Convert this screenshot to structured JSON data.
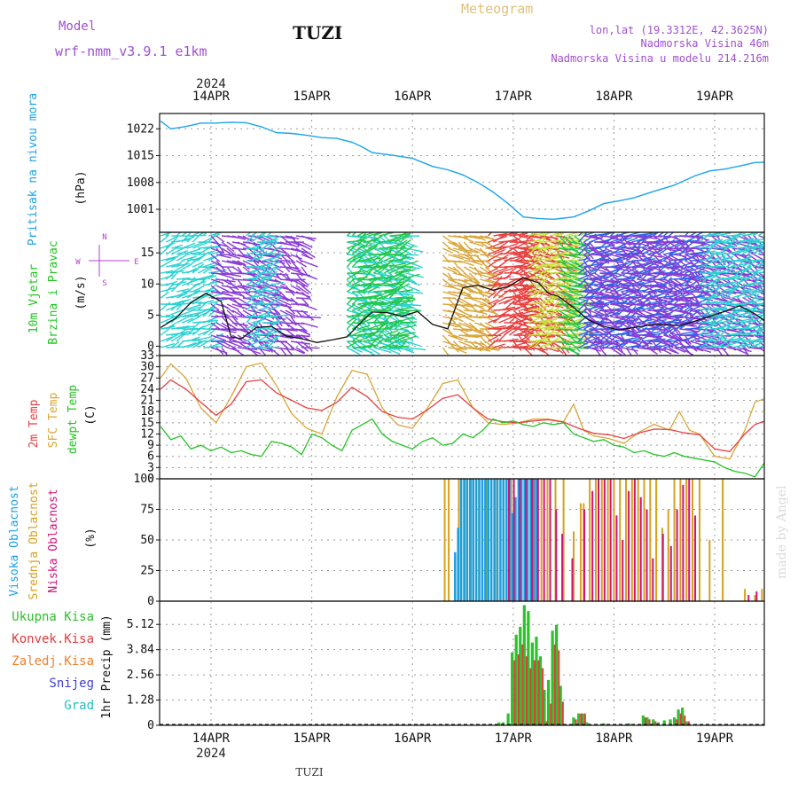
{
  "header": {
    "model_label": "Model",
    "model_name": "wrf-nmm_v3.9.1 e1km",
    "station": "TUZI",
    "meteogram_label": "Meteogram",
    "coords": "lon,lat (19.3312E, 42.3625N)",
    "elevation": "Nadmorska Visina 46m",
    "model_elevation": "Nadmorska Visina u modelu 214.216m",
    "year": "2024",
    "footer_station": "TUZI",
    "watermark": "made by Angel"
  },
  "colors": {
    "pressure": "#1ca3e8",
    "temp2m": "#e84040",
    "sfc_temp": "#d9a63a",
    "dewpt": "#22c322",
    "high_cloud": "#1a9fe0",
    "mid_cloud": "#d8a020",
    "low_cloud": "#d0127c",
    "total_precip": "#2fbf2f",
    "conv_precip": "#e33a3a",
    "frz_precip": "#f07f2a",
    "snow": "#4040e0",
    "hail": "#20c0c0",
    "wind_axis_label": "#b040d0"
  },
  "labels": {
    "pressure": [
      "Pritisak na nivou mora",
      "(hPa)"
    ],
    "wind": [
      "10m Vjetar",
      "Brzina i Pravac",
      "(m/s)"
    ],
    "compass": [
      "N",
      "W",
      "E",
      "S"
    ],
    "temp": [
      "2m Temp",
      "SFC Temp",
      "dewpt Temp",
      "(C)"
    ],
    "cloud": [
      "Visoka Oblacnost",
      "Srednja Oblacnost",
      "Niska Oblacnost",
      "(%)"
    ],
    "precip_unit": "1hr Precip (mm)",
    "precip_legend": [
      "Ukupna Kisa",
      "Konvek.Kisa",
      "Zaledj.Kisa",
      "Snijeg",
      "Grad"
    ]
  },
  "chart_data": [
    {
      "type": "line",
      "panel": "pressure",
      "x_day_ticks": [
        "14APR",
        "15APR",
        "16APR",
        "17APR",
        "18APR",
        "19APR"
      ],
      "ylabel": "(hPa)",
      "yticks": [
        1001,
        1008,
        1015,
        1022
      ],
      "ylim": [
        995,
        1026
      ],
      "series": [
        {
          "name": "Pritisak na nivou mora",
          "x": [
            13.5,
            13.6,
            13.75,
            13.9,
            14.05,
            14.2,
            14.35,
            14.5,
            14.65,
            14.8,
            14.95,
            15.1,
            15.25,
            15.4,
            15.5,
            15.6,
            15.8,
            16.0,
            16.2,
            16.35,
            16.5,
            16.65,
            16.8,
            16.95,
            17.1,
            17.25,
            17.4,
            17.5,
            17.6,
            17.75,
            17.9,
            18.05,
            18.2,
            18.4,
            18.6,
            18.8,
            18.95,
            19.1,
            19.25,
            19.4,
            19.5
          ],
          "values": [
            1024,
            1022,
            1022.6,
            1023.5,
            1023.5,
            1023.7,
            1023.6,
            1022.5,
            1021,
            1020.8,
            1020.3,
            1019.7,
            1019.5,
            1018.5,
            1017.3,
            1015.8,
            1015.1,
            1014.3,
            1012.2,
            1011.3,
            1010,
            1008,
            1005.5,
            1002.5,
            999,
            998.6,
            998.4,
            998.7,
            999,
            1000.6,
            1002.5,
            1003.2,
            1004,
            1005.7,
            1007.3,
            1009.7,
            1011,
            1011.5,
            1012.3,
            1013.2,
            1013.3
          ]
        }
      ]
    },
    {
      "type": "line",
      "panel": "wind",
      "x_day_ticks": [
        "14APR",
        "15APR",
        "16APR",
        "17APR",
        "18APR",
        "19APR"
      ],
      "ylabel": "(m/s)",
      "yticks": [
        0,
        5,
        10,
        15
      ],
      "ylim": [
        -1.5,
        18.3
      ],
      "series": [
        {
          "name": "10m Vjetar",
          "x": [
            13.5,
            13.65,
            13.8,
            13.95,
            14.1,
            14.2,
            14.3,
            14.45,
            14.6,
            14.75,
            14.9,
            15.05,
            15.2,
            15.35,
            15.5,
            15.6,
            15.75,
            15.9,
            16.05,
            16.2,
            16.35,
            16.5,
            16.65,
            16.8,
            16.95,
            17.1,
            17.25,
            17.35,
            17.45,
            17.6,
            17.75,
            17.9,
            18.05,
            18.2,
            18.35,
            18.5,
            18.65,
            18.8,
            18.95,
            19.1,
            19.25,
            19.4,
            19.5
          ],
          "values": [
            3,
            4.5,
            7,
            8.5,
            7.2,
            1.5,
            1.2,
            3,
            3.2,
            1.6,
            1.2,
            0.6,
            1,
            1.5,
            4,
            5.5,
            5.4,
            4.8,
            5.6,
            3.5,
            2.8,
            9.4,
            9.8,
            9,
            9.6,
            11,
            10.2,
            8.5,
            8,
            6.2,
            4.2,
            3.2,
            2.6,
            3,
            3.4,
            3.5,
            3.3,
            4,
            4.8,
            5.6,
            6.5,
            5.2,
            4
          ]
        }
      ],
      "arrow_bands": [
        {
          "color": "#2ad2d2",
          "from": 13.5,
          "to": 14.0
        },
        {
          "color": "#8a3ad6",
          "from": 14.0,
          "to": 14.9
        },
        {
          "color": "#2ad2d2",
          "from": 14.35,
          "to": 14.6
        },
        {
          "color": "#2ad2d2",
          "from": 15.35,
          "to": 15.95
        },
        {
          "color": "#22c84a",
          "from": 15.35,
          "to": 15.9
        },
        {
          "color": "#d9a63a",
          "from": 16.3,
          "to": 16.75
        },
        {
          "color": "#e84040",
          "from": 16.75,
          "to": 17.15
        },
        {
          "color": "#e84040",
          "from": 17.0,
          "to": 17.5
        },
        {
          "color": "#c8e03c",
          "from": 17.15,
          "to": 17.65
        },
        {
          "color": "#22c84a",
          "from": 17.45,
          "to": 17.65
        },
        {
          "color": "#2a66e8",
          "from": 17.65,
          "to": 18.85
        },
        {
          "color": "#8a3ad6",
          "from": 17.7,
          "to": 19.5
        },
        {
          "color": "#2ad2d2",
          "from": 18.85,
          "to": 19.5
        }
      ]
    },
    {
      "type": "line",
      "panel": "temperature",
      "x_day_ticks": [
        "14APR",
        "15APR",
        "16APR",
        "17APR",
        "18APR",
        "19APR"
      ],
      "ylabel": "(C)",
      "yticks": [
        0,
        3,
        6,
        9,
        12,
        15,
        18,
        21,
        24,
        27,
        30,
        33
      ],
      "ylim": [
        0,
        33
      ],
      "series": [
        {
          "name": "2m Temp",
          "x": [
            13.5,
            13.6,
            13.75,
            13.9,
            14.05,
            14.2,
            14.35,
            14.5,
            14.65,
            14.8,
            14.95,
            15.1,
            15.25,
            15.4,
            15.55,
            15.7,
            15.85,
            16.0,
            16.15,
            16.3,
            16.45,
            16.6,
            16.75,
            16.9,
            17.05,
            17.2,
            17.35,
            17.5,
            17.65,
            17.8,
            17.95,
            18.1,
            18.25,
            18.4,
            18.55,
            18.7,
            18.85,
            19.0,
            19.15,
            19.3,
            19.4,
            19.5
          ],
          "values": [
            24,
            26.5,
            24,
            20.5,
            17,
            20,
            26,
            26.5,
            23,
            21,
            19,
            18.3,
            20.5,
            24.5,
            22,
            18,
            16.5,
            16,
            18.5,
            21.5,
            22.5,
            19,
            16,
            15.3,
            15,
            15.5,
            15.8,
            15.2,
            13.5,
            12.2,
            11.8,
            10.8,
            12.3,
            13.3,
            13.2,
            12.3,
            11.8,
            8,
            7.3,
            12,
            14.5,
            15.5
          ]
        },
        {
          "name": "SFC Temp",
          "x": [
            13.5,
            13.6,
            13.75,
            13.9,
            14.05,
            14.2,
            14.35,
            14.5,
            14.65,
            14.8,
            14.95,
            15.1,
            15.25,
            15.4,
            15.55,
            15.7,
            15.85,
            16.0,
            16.15,
            16.3,
            16.45,
            16.6,
            16.75,
            16.9,
            17.05,
            17.2,
            17.35,
            17.5,
            17.6,
            17.7,
            17.8,
            17.95,
            18.1,
            18.25,
            18.4,
            18.55,
            18.65,
            18.75,
            18.85,
            19.0,
            19.15,
            19.3,
            19.4,
            19.5
          ],
          "values": [
            27,
            30.8,
            27,
            19,
            15,
            22,
            30,
            31,
            25,
            17.5,
            13.5,
            12,
            22,
            29,
            28,
            19,
            14.5,
            13.5,
            19,
            25.5,
            26.5,
            19,
            15,
            14.5,
            15,
            16,
            16,
            15.3,
            20,
            13,
            11.5,
            10.8,
            9.5,
            12.5,
            14.6,
            13,
            18,
            13,
            12,
            6,
            5.3,
            13,
            20.5,
            21.5
          ]
        },
        {
          "name": "dewpt Temp",
          "x": [
            13.5,
            13.6,
            13.7,
            13.8,
            13.9,
            14.0,
            14.1,
            14.2,
            14.3,
            14.4,
            14.5,
            14.6,
            14.7,
            14.8,
            14.9,
            15.0,
            15.1,
            15.2,
            15.3,
            15.4,
            15.5,
            15.6,
            15.7,
            15.8,
            15.9,
            16.0,
            16.1,
            16.2,
            16.3,
            16.4,
            16.5,
            16.6,
            16.7,
            16.8,
            16.9,
            17.0,
            17.1,
            17.2,
            17.3,
            17.4,
            17.5,
            17.6,
            17.7,
            17.8,
            17.9,
            18.0,
            18.1,
            18.2,
            18.3,
            18.4,
            18.5,
            18.6,
            18.7,
            18.8,
            18.9,
            19.0,
            19.1,
            19.2,
            19.3,
            19.4,
            19.5
          ],
          "values": [
            14,
            10.5,
            11.5,
            8,
            9,
            7.5,
            8.5,
            7,
            7.5,
            6.5,
            6,
            10,
            9.5,
            8.5,
            6.5,
            12,
            11,
            9,
            7.5,
            13,
            14.5,
            16,
            12,
            10,
            9,
            8,
            10,
            11,
            9,
            9.5,
            12,
            11,
            13,
            16,
            15,
            15.5,
            14.5,
            14,
            15,
            14.5,
            15,
            12,
            11,
            10,
            10.5,
            9,
            8.5,
            7,
            7.5,
            6.5,
            6,
            7,
            6,
            5.5,
            5,
            4.5,
            3,
            2,
            1.5,
            0.5,
            4.5
          ]
        }
      ]
    },
    {
      "type": "bar",
      "panel": "cloud",
      "x_day_ticks": [
        "14APR",
        "15APR",
        "16APR",
        "17APR",
        "18APR",
        "19APR"
      ],
      "ylabel": "(%)",
      "yticks": [
        0,
        25,
        50,
        75,
        100
      ],
      "ylim": [
        0,
        100
      ],
      "series": [
        {
          "name": "Visoka Oblacnost",
          "x": [
            16.41,
            16.44,
            16.47,
            16.5,
            16.53,
            16.56,
            16.59,
            16.62,
            16.65,
            16.68,
            16.71,
            16.74,
            16.77,
            16.8,
            16.83,
            16.86,
            16.89,
            16.92,
            16.95,
            16.98,
            17.01,
            17.04,
            17.07,
            17.1,
            17.13,
            17.16,
            17.19,
            17.22
          ],
          "values": [
            40,
            60,
            100,
            100,
            100,
            100,
            100,
            100,
            100,
            100,
            100,
            100,
            100,
            100,
            100,
            100,
            100,
            100,
            100,
            72,
            85,
            100,
            100,
            100,
            100,
            100,
            100,
            100
          ]
        },
        {
          "name": "Srednja Oblacnost",
          "x": [
            16.32,
            16.36,
            16.46,
            16.52,
            16.58,
            16.66,
            16.74,
            16.82,
            16.9,
            16.98,
            17.06,
            17.14,
            17.22,
            17.28,
            17.34,
            17.42,
            17.5,
            17.6,
            17.67,
            17.7,
            17.76,
            17.82,
            17.88,
            17.94,
            18.0,
            18.06,
            18.12,
            18.18,
            18.24,
            18.3,
            18.36,
            18.42,
            18.48,
            18.54,
            18.6,
            18.66,
            18.72,
            18.78,
            18.85,
            18.95,
            19.08,
            19.3,
            19.4,
            19.47
          ],
          "values": [
            100,
            100,
            100,
            100,
            100,
            100,
            100,
            100,
            100,
            100,
            100,
            100,
            100,
            100,
            100,
            100,
            100,
            57,
            80,
            80,
            100,
            100,
            100,
            100,
            100,
            100,
            100,
            100,
            100,
            100,
            100,
            100,
            60,
            75,
            100,
            100,
            100,
            100,
            100,
            50,
            100,
            10,
            5,
            10
          ]
        },
        {
          "name": "Niska Oblacnost",
          "x": [
            16.97,
            17.02,
            17.08,
            17.14,
            17.2,
            17.26,
            17.32,
            17.38,
            17.44,
            17.5,
            17.6,
            17.72,
            17.8,
            17.86,
            17.92,
            17.98,
            18.04,
            18.1,
            18.16,
            18.22,
            18.28,
            18.34,
            18.4,
            18.5,
            18.58,
            18.64,
            18.7,
            18.76,
            18.82,
            19.35,
            19.43
          ],
          "values": [
            100,
            100,
            100,
            100,
            100,
            100,
            100,
            100,
            75,
            55,
            35,
            75,
            90,
            100,
            100,
            100,
            70,
            50,
            90,
            100,
            85,
            75,
            35,
            55,
            45,
            75,
            95,
            100,
            70,
            5,
            8
          ]
        }
      ]
    },
    {
      "type": "bar",
      "panel": "precipitation",
      "x_day_ticks": [
        "14APR",
        "15APR",
        "16APR",
        "17APR",
        "18APR",
        "19APR"
      ],
      "ylabel": "1hr Precip (mm)",
      "yticks": [
        0,
        1.28,
        2.56,
        3.84,
        5.12
      ],
      "ylim": [
        0,
        6.3
      ],
      "series": [
        {
          "name": "Ukupna Kisa",
          "x": [
            16.86,
            16.9,
            16.95,
            16.99,
            17.03,
            17.07,
            17.11,
            17.15,
            17.19,
            17.23,
            17.27,
            17.31,
            17.35,
            17.39,
            17.43,
            17.47,
            17.6,
            17.65,
            17.69,
            17.73,
            17.9,
            18.15,
            18.29,
            18.33,
            18.39,
            18.44,
            18.5,
            18.56,
            18.6,
            18.64,
            18.68,
            18.72
          ],
          "values": [
            0.15,
            0.15,
            0.6,
            3.7,
            4.6,
            5.0,
            6.1,
            5.8,
            4.2,
            4.5,
            3.5,
            1.8,
            2.3,
            4.8,
            5.1,
            2.0,
            0.4,
            0.6,
            0.6,
            0.15,
            0.1,
            0.1,
            0.5,
            0.4,
            0.3,
            0.15,
            0.25,
            0.3,
            0.4,
            0.8,
            0.9,
            0.2
          ]
        },
        {
          "name": "Konvek.Kisa",
          "x": [
            17.0,
            17.04,
            17.08,
            17.12,
            17.16,
            17.2,
            17.24,
            17.28,
            17.32,
            17.36,
            17.4,
            17.44,
            17.48,
            17.61,
            17.66,
            17.7,
            18.3,
            18.34,
            18.4,
            18.61,
            18.65,
            18.69,
            18.73
          ],
          "values": [
            3.3,
            3.6,
            4.1,
            3.5,
            2.9,
            3.3,
            3.3,
            2.9,
            0.2,
            1.1,
            4.1,
            3.8,
            1.2,
            0.3,
            0.6,
            0.6,
            0.4,
            0.3,
            0.2,
            0.3,
            0.6,
            0.5,
            0.2
          ]
        }
      ]
    }
  ]
}
